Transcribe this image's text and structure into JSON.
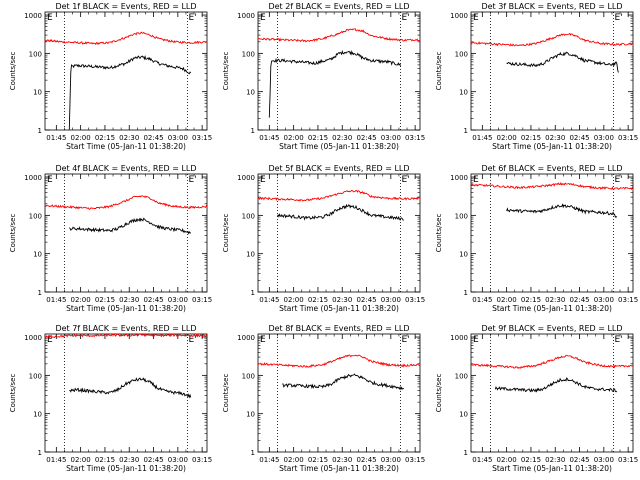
{
  "figure": {
    "xlabel": "Start Time (05-Jan-11 01:38:20)",
    "ylabel": "Counts/sec",
    "x_ticks": [
      "01:45",
      "02:00",
      "02:15",
      "02:30",
      "02:45",
      "03:00",
      "03:15"
    ],
    "y_ticks": [
      "1",
      "10",
      "100",
      "1000"
    ],
    "marker_e": "E",
    "marker_e_prime": "E'"
  },
  "colors": {
    "events": "#000000",
    "lld": "#ff0000",
    "axes": "#000000"
  },
  "chart_data": [
    {
      "type": "line",
      "title": "Det 1f BLACK = Events, RED = LLD",
      "x_range_minutes_from_0138": [
        0,
        100
      ],
      "y_scale": "log",
      "ylim": [
        1,
        1200
      ],
      "grid": false,
      "vertical_dotted_markers_minutes": [
        12,
        88
      ],
      "series": [
        {
          "name": "Events",
          "color": "#000000",
          "x": [
            15,
            16,
            20,
            30,
            40,
            50,
            55,
            60,
            65,
            70,
            75,
            85,
            90
          ],
          "y": [
            1,
            45,
            48,
            45,
            42,
            55,
            75,
            80,
            70,
            55,
            48,
            40,
            30
          ]
        },
        {
          "name": "LLD",
          "color": "#ff0000",
          "x": [
            0,
            10,
            20,
            30,
            40,
            50,
            55,
            60,
            65,
            70,
            80,
            90,
            100
          ],
          "y": [
            220,
            200,
            190,
            180,
            190,
            260,
            320,
            340,
            300,
            240,
            200,
            190,
            200
          ]
        }
      ]
    },
    {
      "type": "line",
      "title": "Det 2f BLACK = Events, RED = LLD",
      "x_range_minutes_from_0138": [
        0,
        100
      ],
      "y_scale": "log",
      "ylim": [
        1,
        1200
      ],
      "grid": false,
      "vertical_dotted_markers_minutes": [
        12,
        88
      ],
      "series": [
        {
          "name": "Events",
          "color": "#000000",
          "x": [
            7,
            8,
            15,
            25,
            35,
            45,
            50,
            55,
            60,
            65,
            70,
            80,
            88
          ],
          "y": [
            2,
            65,
            65,
            60,
            55,
            70,
            100,
            110,
            100,
            75,
            65,
            60,
            50
          ]
        },
        {
          "name": "LLD",
          "color": "#ff0000",
          "x": [
            0,
            10,
            20,
            30,
            40,
            50,
            55,
            60,
            65,
            70,
            80,
            90,
            100
          ],
          "y": [
            240,
            230,
            220,
            210,
            240,
            330,
            400,
            420,
            380,
            290,
            240,
            220,
            230
          ]
        }
      ]
    },
    {
      "type": "line",
      "title": "Det 3f BLACK = Events, RED = LLD",
      "x_range_minutes_from_0138": [
        0,
        100
      ],
      "y_scale": "log",
      "ylim": [
        1,
        1200
      ],
      "grid": false,
      "vertical_dotted_markers_minutes": [
        12,
        88
      ],
      "series": [
        {
          "name": "Events",
          "color": "#000000",
          "x": [
            22,
            30,
            40,
            45,
            50,
            55,
            60,
            65,
            70,
            80,
            85,
            90,
            91
          ],
          "y": [
            55,
            52,
            48,
            55,
            75,
            95,
            100,
            85,
            65,
            55,
            50,
            55,
            30
          ]
        },
        {
          "name": "LLD",
          "color": "#ff0000",
          "x": [
            0,
            10,
            20,
            30,
            40,
            50,
            55,
            60,
            65,
            70,
            80,
            90,
            100
          ],
          "y": [
            190,
            180,
            170,
            160,
            180,
            250,
            300,
            320,
            280,
            220,
            180,
            170,
            180
          ]
        }
      ]
    },
    {
      "type": "line",
      "title": "Det 4f BLACK = Events, RED = LLD",
      "x_range_minutes_from_0138": [
        0,
        100
      ],
      "y_scale": "log",
      "ylim": [
        1,
        1200
      ],
      "grid": false,
      "vertical_dotted_markers_minutes": [
        12,
        88
      ],
      "series": [
        {
          "name": "Events",
          "color": "#000000",
          "x": [
            15,
            20,
            30,
            40,
            45,
            50,
            55,
            60,
            65,
            70,
            75,
            85,
            90
          ],
          "y": [
            45,
            45,
            42,
            40,
            45,
            60,
            75,
            80,
            65,
            50,
            45,
            40,
            35
          ]
        },
        {
          "name": "LLD",
          "color": "#ff0000",
          "x": [
            0,
            10,
            20,
            30,
            40,
            50,
            55,
            60,
            65,
            70,
            80,
            90,
            100
          ],
          "y": [
            180,
            170,
            160,
            150,
            170,
            240,
            300,
            320,
            280,
            210,
            170,
            160,
            170
          ]
        }
      ]
    },
    {
      "type": "line",
      "title": "Det 5f BLACK = Events, RED = LLD",
      "x_range_minutes_from_0138": [
        0,
        100
      ],
      "y_scale": "log",
      "ylim": [
        1,
        1200
      ],
      "grid": false,
      "vertical_dotted_markers_minutes": [
        12,
        88
      ],
      "series": [
        {
          "name": "Events",
          "color": "#000000",
          "x": [
            12,
            20,
            30,
            40,
            45,
            50,
            55,
            60,
            65,
            70,
            80,
            90
          ],
          "y": [
            100,
            95,
            85,
            90,
            110,
            150,
            175,
            165,
            130,
            100,
            90,
            80
          ]
        },
        {
          "name": "LLD",
          "color": "#ff0000",
          "x": [
            0,
            10,
            20,
            30,
            40,
            50,
            55,
            60,
            65,
            70,
            80,
            90,
            100
          ],
          "y": [
            280,
            270,
            260,
            250,
            280,
            370,
            420,
            430,
            390,
            310,
            280,
            270,
            280
          ]
        }
      ]
    },
    {
      "type": "line",
      "title": "Det 6f BLACK = Events, RED = LLD",
      "x_range_minutes_from_0138": [
        0,
        100
      ],
      "y_scale": "log",
      "ylim": [
        1,
        1200
      ],
      "grid": false,
      "vertical_dotted_markers_minutes": [
        12,
        88
      ],
      "series": [
        {
          "name": "Events",
          "color": "#000000",
          "x": [
            22,
            30,
            40,
            45,
            50,
            55,
            60,
            65,
            70,
            80,
            88,
            90
          ],
          "y": [
            140,
            130,
            125,
            135,
            160,
            180,
            175,
            150,
            125,
            120,
            110,
            90
          ]
        },
        {
          "name": "LLD",
          "color": "#ff0000",
          "x": [
            0,
            10,
            20,
            30,
            40,
            50,
            55,
            60,
            65,
            70,
            80,
            90,
            100
          ],
          "y": [
            620,
            600,
            560,
            530,
            560,
            620,
            660,
            660,
            620,
            560,
            520,
            500,
            510
          ]
        }
      ]
    },
    {
      "type": "line",
      "title": "Det 7f BLACK = Events, RED = LLD",
      "x_range_minutes_from_0138": [
        0,
        100
      ],
      "y_scale": "log",
      "ylim": [
        1,
        1200
      ],
      "grid": false,
      "vertical_dotted_markers_minutes": [
        12,
        88
      ],
      "series": [
        {
          "name": "Events",
          "color": "#000000",
          "x": [
            15,
            20,
            30,
            40,
            45,
            50,
            55,
            60,
            65,
            70,
            75,
            85,
            90
          ],
          "y": [
            40,
            42,
            38,
            35,
            42,
            60,
            75,
            80,
            65,
            45,
            38,
            33,
            28
          ]
        },
        {
          "name": "LLD",
          "color": "#ff0000",
          "x": [
            0,
            10,
            20,
            30,
            40,
            50,
            60,
            70,
            80,
            90,
            100
          ],
          "y": [
            1000,
            1050,
            1100,
            1080,
            1120,
            1100,
            1150,
            1090,
            1120,
            1100,
            1080
          ]
        }
      ]
    },
    {
      "type": "line",
      "title": "Det 8f BLACK = Events, RED = LLD",
      "x_range_minutes_from_0138": [
        0,
        100
      ],
      "y_scale": "log",
      "ylim": [
        1,
        1200
      ],
      "grid": false,
      "vertical_dotted_markers_minutes": [
        12,
        88
      ],
      "series": [
        {
          "name": "Events",
          "color": "#000000",
          "x": [
            15,
            20,
            30,
            40,
            45,
            50,
            55,
            60,
            65,
            70,
            75,
            85,
            90
          ],
          "y": [
            55,
            55,
            52,
            50,
            58,
            80,
            95,
            100,
            85,
            65,
            58,
            50,
            45
          ]
        },
        {
          "name": "LLD",
          "color": "#ff0000",
          "x": [
            0,
            10,
            20,
            30,
            40,
            50,
            55,
            60,
            65,
            70,
            80,
            90,
            100
          ],
          "y": [
            200,
            190,
            180,
            170,
            190,
            270,
            320,
            340,
            300,
            230,
            190,
            180,
            190
          ]
        }
      ]
    },
    {
      "type": "line",
      "title": "Det 9f BLACK = Events, RED = LLD",
      "x_range_minutes_from_0138": [
        0,
        100
      ],
      "y_scale": "log",
      "ylim": [
        1,
        1200
      ],
      "grid": false,
      "vertical_dotted_markers_minutes": [
        12,
        88
      ],
      "series": [
        {
          "name": "Events",
          "color": "#000000",
          "x": [
            15,
            20,
            30,
            40,
            45,
            50,
            55,
            60,
            65,
            70,
            75,
            85,
            90
          ],
          "y": [
            45,
            45,
            42,
            40,
            45,
            60,
            75,
            80,
            65,
            50,
            45,
            42,
            40
          ]
        },
        {
          "name": "LLD",
          "color": "#ff0000",
          "x": [
            0,
            10,
            20,
            30,
            40,
            50,
            55,
            60,
            65,
            70,
            80,
            90,
            100
          ],
          "y": [
            190,
            180,
            170,
            160,
            180,
            250,
            300,
            320,
            280,
            220,
            180,
            170,
            180
          ]
        }
      ]
    }
  ]
}
